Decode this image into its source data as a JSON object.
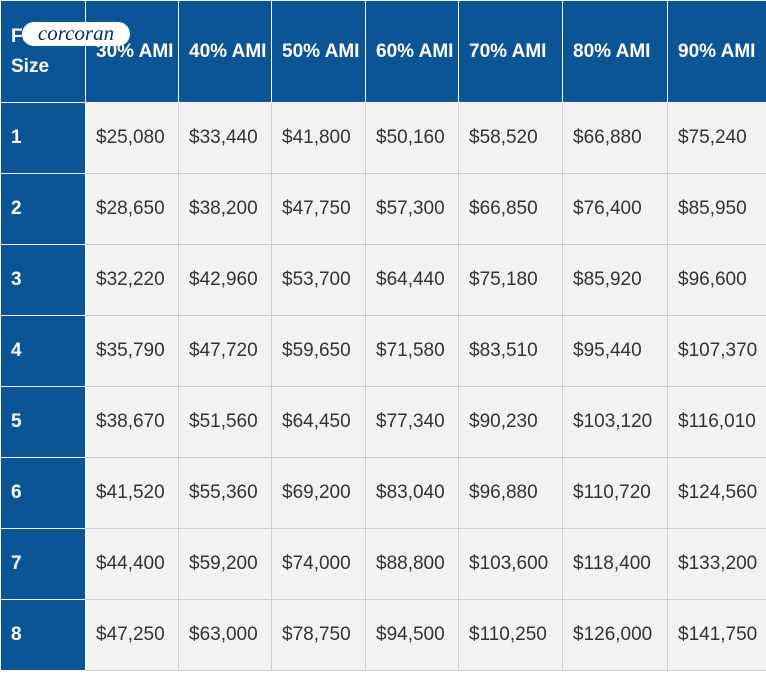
{
  "logo": "corcoran",
  "table": {
    "header": [
      "Family Size",
      "30% AMI",
      "40% AMI",
      "50% AMI",
      "60% AMI",
      "70% AMI",
      "80% AMI",
      "90% AMI"
    ],
    "rows": [
      [
        "1",
        "$25,080",
        "$33,440",
        "$41,800",
        "$50,160",
        "$58,520",
        "$66,880",
        "$75,240"
      ],
      [
        "2",
        "$28,650",
        "$38,200",
        "$47,750",
        "$57,300",
        "$66,850",
        "$76,400",
        "$85,950"
      ],
      [
        "3",
        "$32,220",
        "$42,960",
        "$53,700",
        "$64,440",
        "$75,180",
        "$85,920",
        "$96,600"
      ],
      [
        "4",
        "$35,790",
        "$47,720",
        "$59,650",
        "$71,580",
        "$83,510",
        "$95,440",
        "$107,370"
      ],
      [
        "5",
        "$38,670",
        "$51,560",
        "$64,450",
        "$77,340",
        "$90,230",
        "$103,120",
        "$116,010"
      ],
      [
        "6",
        "$41,520",
        "$55,360",
        "$69,200",
        "$83,040",
        "$96,880",
        "$110,720",
        "$124,560"
      ],
      [
        "7",
        "$44,400",
        "$59,200",
        "$74,000",
        "$88,800",
        "$103,600",
        "$118,400",
        "$133,200"
      ],
      [
        "8",
        "$47,250",
        "$63,000",
        "$78,750",
        "$94,500",
        "$110,250",
        "$126,000",
        "$141,750"
      ]
    ]
  }
}
